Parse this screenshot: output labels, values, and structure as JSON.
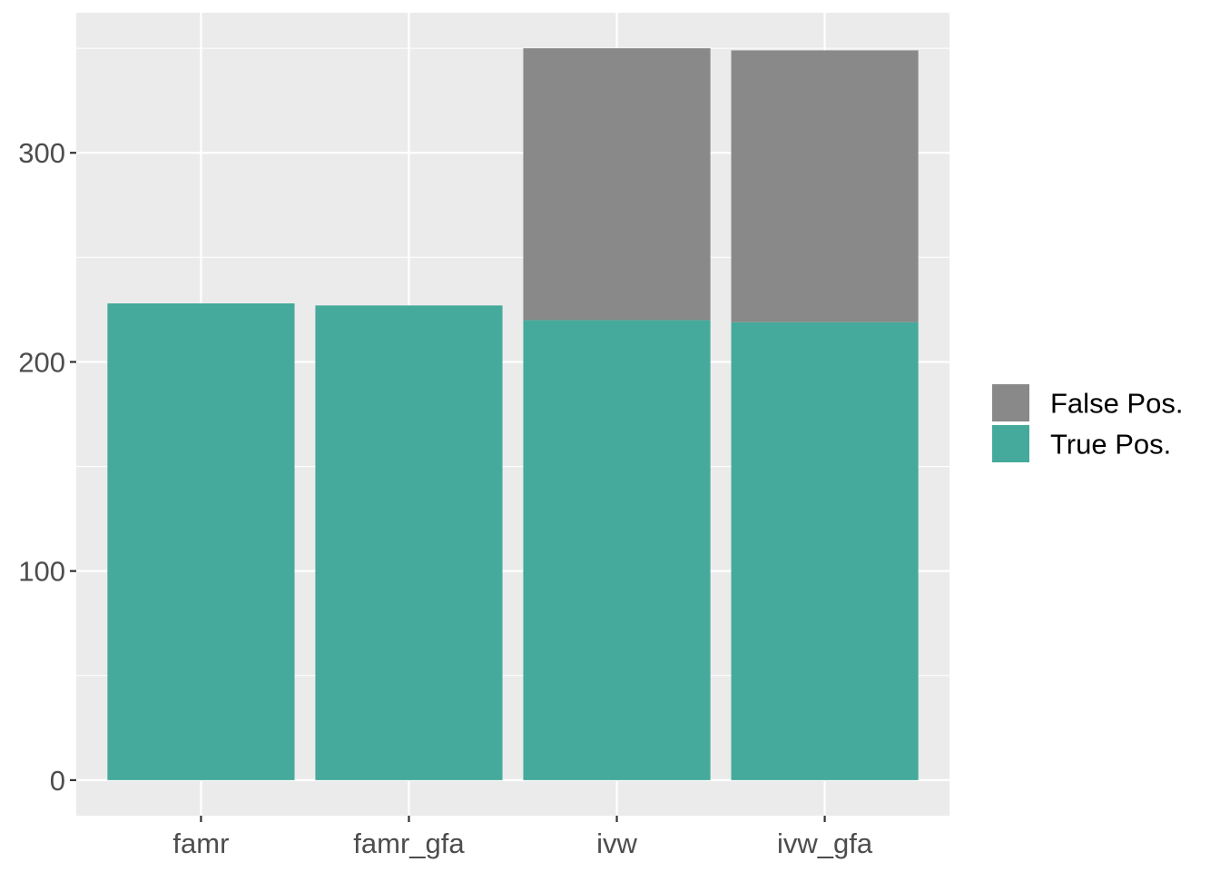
{
  "chart_data": {
    "type": "bar",
    "stacked": true,
    "categories": [
      "famr",
      "famr_gfa",
      "ivw",
      "ivw_gfa"
    ],
    "series": [
      {
        "name": "True Pos.",
        "values": [
          228,
          227,
          220,
          219
        ],
        "color": "#45AA9B"
      },
      {
        "name": "False Pos.",
        "values": [
          0,
          0,
          130,
          130
        ],
        "color": "#898989"
      }
    ],
    "title": "",
    "xlabel": "",
    "ylabel": "",
    "ylim": [
      -17,
      367
    ],
    "yticks": [
      "0",
      "100",
      "200",
      "300"
    ],
    "grid": true,
    "legend_position": "right",
    "legend_order": [
      "False Pos.",
      "True Pos."
    ],
    "panel_color": "#EBEBEB"
  }
}
